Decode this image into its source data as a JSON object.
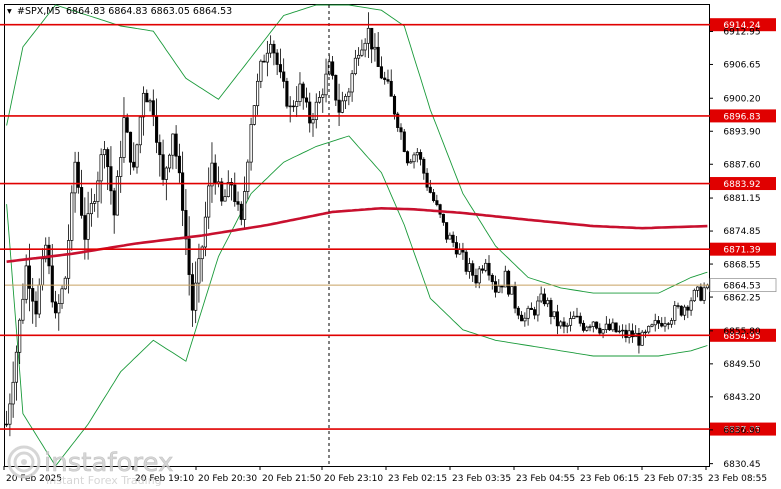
{
  "header": {
    "symbol": "#SPX,M5",
    "ohlc": "6864.83 6864.83 6863.05 6864.53"
  },
  "colors": {
    "candle": "#000000",
    "level_line": "#e00000",
    "level_box": "#e00000",
    "ma": "#c8102e",
    "bands": "#1a9a3a",
    "current_price": "#c8a060"
  },
  "watermark": {
    "brand": "instaforex",
    "tagline": "Instant Forex Trading"
  },
  "chart_data": {
    "type": "candlestick",
    "ylim": [
      6830.0,
      6918.0
    ],
    "y_ticks": [
      "6912.95",
      "6906.65",
      "6900.20",
      "6893.90",
      "6887.60",
      "6881.15",
      "6874.85",
      "6868.55",
      "6862.25",
      "6855.80",
      "6849.50",
      "6843.20",
      "6836.90",
      "6830.45"
    ],
    "x_ticks": [
      "20 Feb 2025",
      "20 Feb 19:10",
      "20 Feb 20:30",
      "20 Feb 21:50",
      "20 Feb 23:10",
      "23 Feb 02:15",
      "23 Feb 03:35",
      "23 Feb 04:55",
      "23 Feb 06:15",
      "23 Feb 07:35",
      "23 Feb 08:55"
    ],
    "levels": [
      {
        "label": "6914.24",
        "value": 6914.24
      },
      {
        "label": "6896.83",
        "value": 6896.83
      },
      {
        "label": "6883.92",
        "value": 6883.92
      },
      {
        "label": "6871.39",
        "value": 6871.39
      },
      {
        "label": "6854.95",
        "value": 6854.95
      },
      {
        "label": "6837.05",
        "value": 6837.05
      }
    ],
    "current_price": {
      "label": "6864.53",
      "value": 6864.53
    },
    "close_path": [
      [
        0,
        6838
      ],
      [
        3,
        6852
      ],
      [
        6,
        6868
      ],
      [
        9,
        6860
      ],
      [
        12,
        6872
      ],
      [
        15,
        6858
      ],
      [
        18,
        6866
      ],
      [
        21,
        6888
      ],
      [
        24,
        6874
      ],
      [
        27,
        6882
      ],
      [
        30,
        6892
      ],
      [
        33,
        6878
      ],
      [
        36,
        6896
      ],
      [
        39,
        6886
      ],
      [
        42,
        6902
      ],
      [
        45,
        6898
      ],
      [
        48,
        6884
      ],
      [
        51,
        6894
      ],
      [
        54,
        6880
      ],
      [
        57,
        6860
      ],
      [
        60,
        6872
      ],
      [
        63,
        6888
      ],
      [
        66,
        6880
      ],
      [
        69,
        6884
      ],
      [
        72,
        6876
      ],
      [
        75,
        6896
      ],
      [
        78,
        6906
      ],
      [
        81,
        6912
      ],
      [
        84,
        6904
      ],
      [
        87,
        6898
      ],
      [
        90,
        6902
      ],
      [
        93,
        6896
      ],
      [
        96,
        6900
      ],
      [
        99,
        6906
      ],
      [
        102,
        6898
      ],
      [
        105,
        6902
      ],
      [
        108,
        6910
      ],
      [
        111,
        6913
      ],
      [
        114,
        6906
      ],
      [
        117,
        6902
      ],
      [
        120,
        6896
      ],
      [
        123,
        6889
      ],
      [
        126,
        6890
      ],
      [
        129,
        6884
      ],
      [
        132,
        6879
      ],
      [
        135,
        6874
      ],
      [
        138,
        6872
      ],
      [
        141,
        6868
      ],
      [
        144,
        6866
      ],
      [
        147,
        6870
      ],
      [
        150,
        6864
      ],
      [
        153,
        6866
      ],
      [
        156,
        6861
      ],
      [
        159,
        6858
      ],
      [
        162,
        6860
      ],
      [
        165,
        6862
      ],
      [
        168,
        6858
      ],
      [
        171,
        6856
      ],
      [
        174,
        6858
      ],
      [
        177,
        6857
      ],
      [
        180,
        6858
      ],
      [
        183,
        6856
      ],
      [
        186,
        6856
      ],
      [
        189,
        6855
      ],
      [
        192,
        6855
      ],
      [
        195,
        6854
      ],
      [
        198,
        6856
      ],
      [
        201,
        6858
      ],
      [
        204,
        6859
      ],
      [
        207,
        6860
      ],
      [
        210,
        6862
      ],
      [
        213,
        6863
      ],
      [
        215,
        6864.53
      ]
    ],
    "ma_path": [
      [
        0,
        6869
      ],
      [
        20,
        6870.5
      ],
      [
        40,
        6872.5
      ],
      [
        60,
        6874
      ],
      [
        80,
        6876
      ],
      [
        100,
        6878.5
      ],
      [
        115,
        6879.2
      ],
      [
        125,
        6879
      ],
      [
        140,
        6878.3
      ],
      [
        160,
        6877
      ],
      [
        180,
        6875.8
      ],
      [
        195,
        6875.4
      ],
      [
        215,
        6875.8
      ]
    ],
    "band_upper_path": [
      [
        0,
        6895
      ],
      [
        5,
        6910
      ],
      [
        15,
        6918
      ],
      [
        25,
        6916
      ],
      [
        35,
        6914
      ],
      [
        45,
        6913
      ],
      [
        55,
        6904
      ],
      [
        65,
        6900
      ],
      [
        75,
        6908
      ],
      [
        85,
        6916
      ],
      [
        95,
        6918
      ],
      [
        105,
        6918
      ],
      [
        115,
        6917
      ],
      [
        122,
        6914
      ],
      [
        130,
        6898
      ],
      [
        140,
        6882
      ],
      [
        150,
        6872
      ],
      [
        160,
        6866
      ],
      [
        170,
        6864
      ],
      [
        180,
        6863
      ],
      [
        190,
        6863
      ],
      [
        200,
        6863
      ],
      [
        210,
        6866
      ],
      [
        215,
        6867
      ]
    ],
    "band_lower_path": [
      [
        0,
        6880
      ],
      [
        5,
        6840
      ],
      [
        15,
        6830
      ],
      [
        25,
        6838
      ],
      [
        35,
        6848
      ],
      [
        45,
        6854
      ],
      [
        55,
        6850
      ],
      [
        65,
        6870
      ],
      [
        75,
        6882
      ],
      [
        85,
        6888
      ],
      [
        95,
        6891
      ],
      [
        105,
        6893
      ],
      [
        115,
        6886
      ],
      [
        122,
        6876
      ],
      [
        130,
        6862
      ],
      [
        140,
        6856
      ],
      [
        150,
        6854
      ],
      [
        160,
        6853
      ],
      [
        170,
        6852
      ],
      [
        180,
        6851
      ],
      [
        190,
        6851
      ],
      [
        200,
        6851
      ],
      [
        210,
        6852
      ],
      [
        215,
        6853
      ]
    ],
    "grid": false,
    "legend": "none"
  }
}
